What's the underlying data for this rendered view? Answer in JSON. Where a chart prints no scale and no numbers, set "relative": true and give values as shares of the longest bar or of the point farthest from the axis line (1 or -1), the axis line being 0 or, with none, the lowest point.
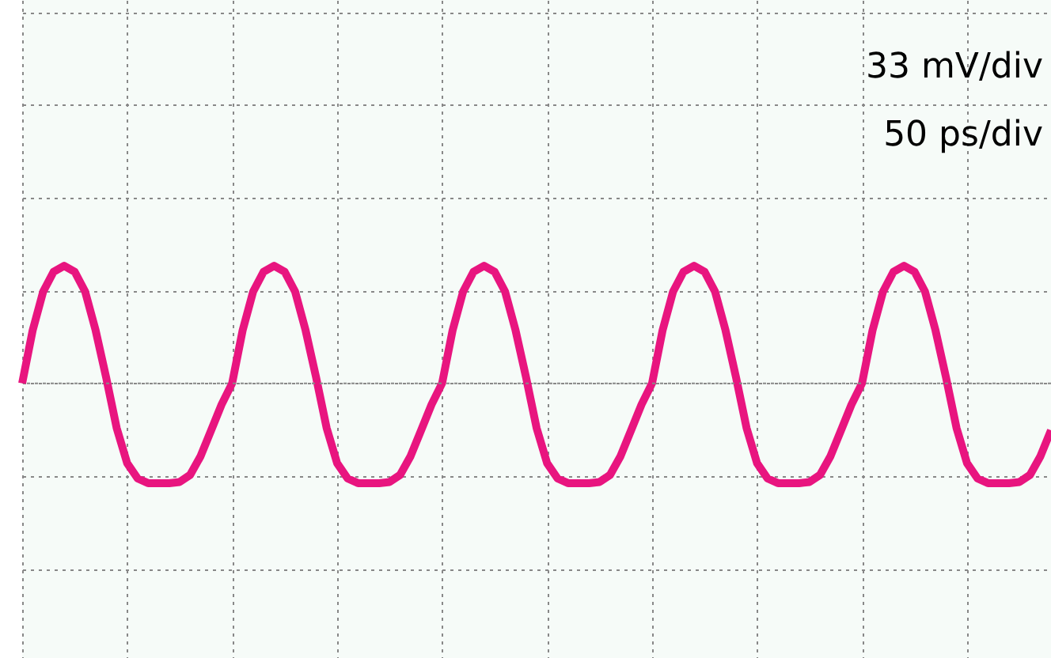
{
  "chart_data": {
    "type": "line",
    "relative": true,
    "grid": true,
    "marker": "none",
    "line_style": "solid",
    "annotations": [
      "33 mV/div",
      "50 ps/div"
    ],
    "categories": [
      null,
      null,
      null,
      null,
      null,
      null,
      null,
      null,
      null,
      null,
      null,
      null,
      null,
      null,
      null,
      null,
      null,
      null,
      null,
      null,
      null,
      null,
      null,
      null,
      null,
      null,
      null,
      null,
      null,
      null,
      null,
      null,
      null,
      null,
      null,
      null,
      null,
      null,
      null,
      null,
      null,
      null,
      null,
      null,
      null,
      null,
      null,
      null,
      null,
      null,
      null,
      null,
      null,
      null,
      null,
      null,
      null,
      null,
      null,
      null,
      null,
      null,
      null,
      null,
      null,
      null,
      null,
      null,
      null,
      null,
      null,
      null,
      null,
      null,
      null,
      null,
      null,
      null,
      null,
      null,
      null,
      null,
      null,
      null,
      null,
      null,
      null,
      null,
      null,
      null,
      null,
      null,
      null,
      null,
      null,
      null,
      null,
      null,
      null
    ],
    "series": [
      {
        "color": "#e8157f",
        "values": [
          0,
          0.45,
          0.78,
          0.95,
          1.0,
          0.95,
          0.78,
          0.45,
          0.05,
          -0.38,
          -0.68,
          -0.81,
          -0.85,
          -0.85,
          -0.85,
          -0.84,
          -0.78,
          -0.62,
          -0.4,
          -0.18,
          0,
          0.45,
          0.78,
          0.95,
          1.0,
          0.95,
          0.78,
          0.45,
          0.05,
          -0.38,
          -0.68,
          -0.81,
          -0.85,
          -0.85,
          -0.85,
          -0.84,
          -0.78,
          -0.62,
          -0.4,
          -0.18,
          0,
          0.45,
          0.78,
          0.95,
          1.0,
          0.95,
          0.78,
          0.45,
          0.05,
          -0.38,
          -0.68,
          -0.81,
          -0.85,
          -0.85,
          -0.85,
          -0.84,
          -0.78,
          -0.62,
          -0.4,
          -0.18,
          0,
          0.45,
          0.78,
          0.95,
          1.0,
          0.95,
          0.78,
          0.45,
          0.05,
          -0.38,
          -0.68,
          -0.81,
          -0.85,
          -0.85,
          -0.85,
          -0.84,
          -0.78,
          -0.62,
          -0.4,
          -0.18,
          0,
          0.45,
          0.78,
          0.95,
          1.0,
          0.95,
          0.78,
          0.45,
          0.05,
          -0.38,
          -0.68,
          -0.81,
          -0.85,
          -0.85,
          -0.85,
          -0.84,
          -0.78,
          -0.62,
          -0.4
        ]
      }
    ]
  }
}
